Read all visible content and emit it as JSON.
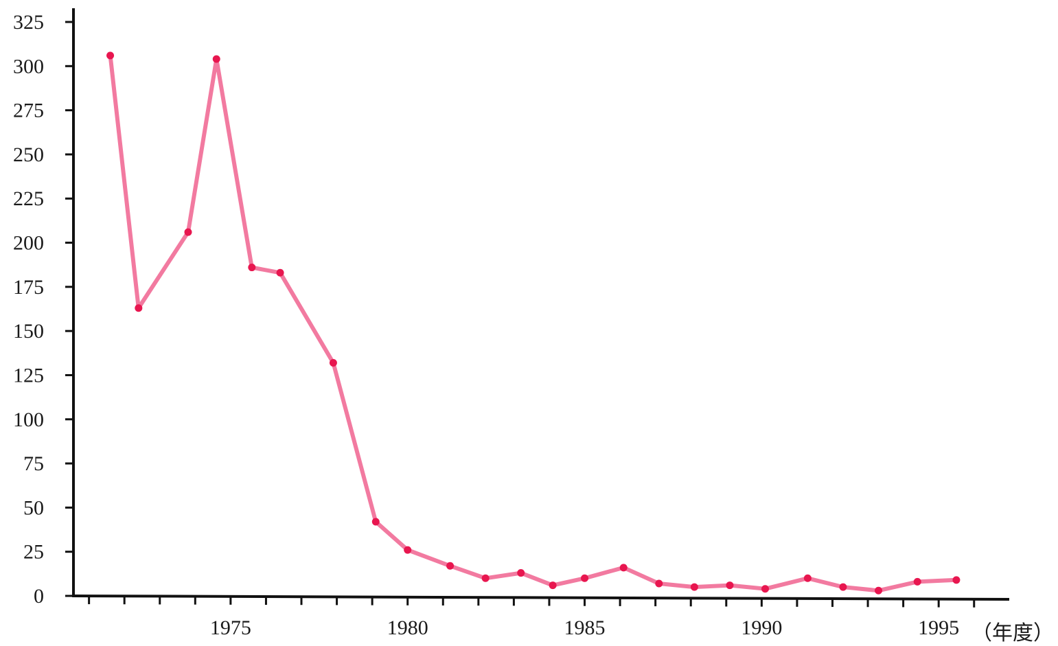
{
  "chart_data": {
    "type": "line",
    "title": "",
    "xlabel": "（年度）",
    "ylabel": "",
    "x": [
      1971.6,
      1972.4,
      1973.8,
      1974.6,
      1975.6,
      1976.4,
      1977.9,
      1979.1,
      1980.0,
      1981.2,
      1982.2,
      1983.2,
      1984.1,
      1985.0,
      1986.1,
      1987.1,
      1988.1,
      1989.1,
      1990.1,
      1991.3,
      1992.3,
      1993.3,
      1994.4,
      1995.5
    ],
    "series": [
      {
        "values": [
          306,
          163,
          206,
          304,
          186,
          183,
          132,
          42,
          26,
          17,
          10,
          13,
          6,
          10,
          16,
          7,
          5,
          6,
          4,
          10,
          5,
          3,
          8,
          9
        ]
      }
    ],
    "xlim": [
      1970.6,
      1996.8
    ],
    "ylim": [
      0,
      325
    ],
    "xticks": [
      1975,
      1980,
      1985,
      1990,
      1995
    ],
    "yticks": [
      0,
      25,
      50,
      75,
      100,
      125,
      150,
      175,
      200,
      225,
      250,
      275,
      300,
      325
    ],
    "grid": false,
    "legend": "none",
    "colors": {
      "line": "#f27aa0",
      "marker": "#e8164f",
      "axis": "#111111"
    }
  }
}
